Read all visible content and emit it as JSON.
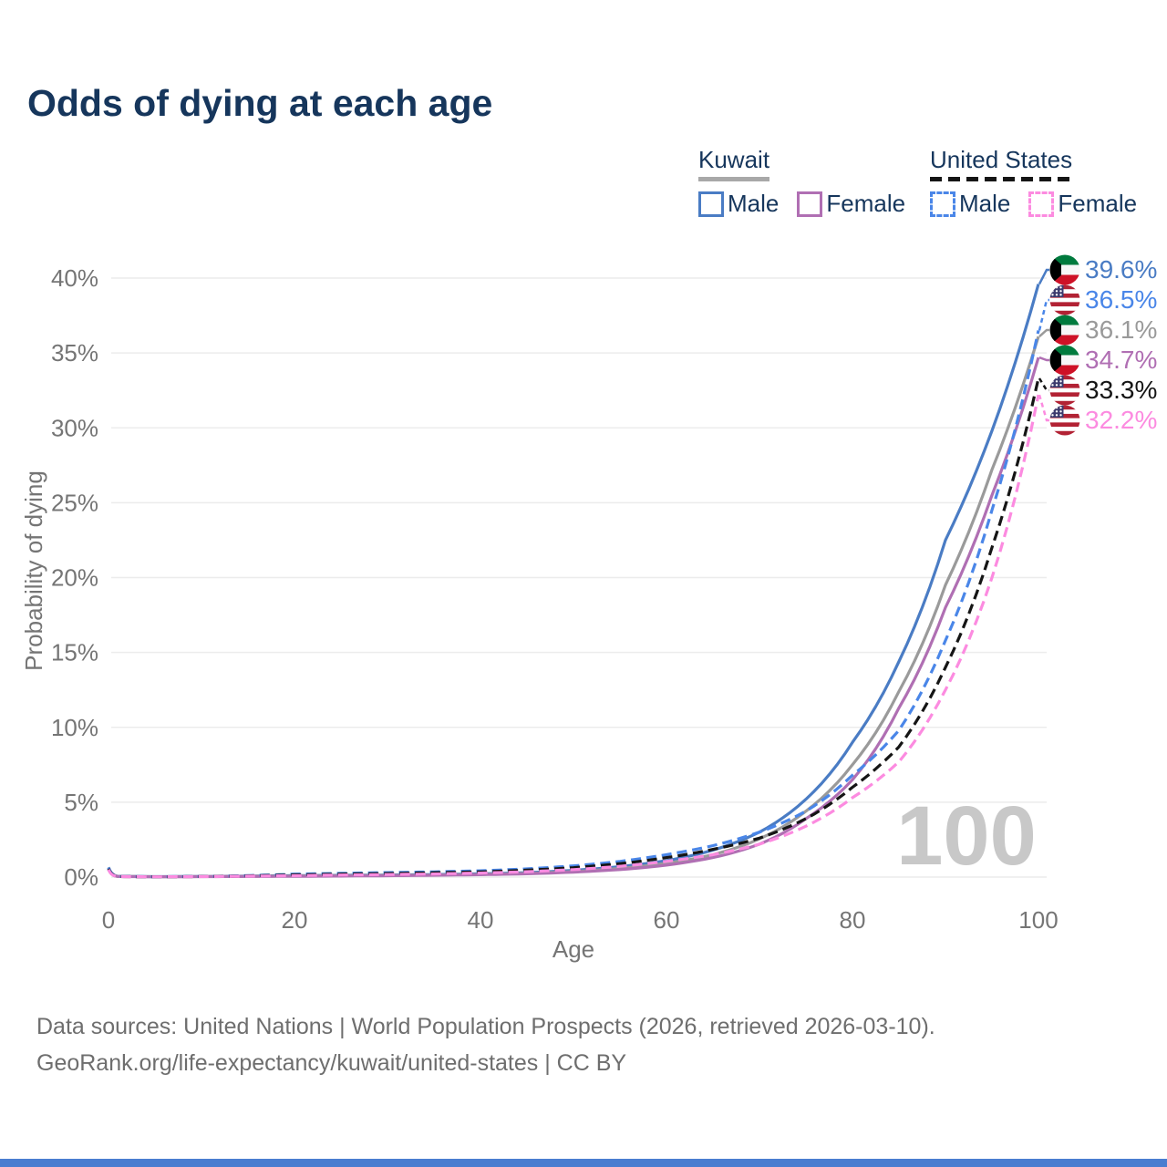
{
  "title": "Odds of dying at each age",
  "watermark": "100",
  "colors": {
    "title_text": "#16365c",
    "axis_text": "#757575",
    "gridline": "#ececec",
    "watermark": "#c8c8c8",
    "footer_text": "#6e6e6e",
    "accent_bar": "#4a7dd0",
    "kuwait_male": "#4a7cc4",
    "kuwait_all": "#9a9a9a",
    "kuwait_female": "#b06fb3",
    "us_male": "#4a86e8",
    "us_all": "#151515",
    "us_female": "#fc8be0"
  },
  "legend": {
    "groups": [
      {
        "id": "kuwait",
        "label": "Kuwait",
        "underline_style": "solid",
        "items": [
          {
            "id": "kuwait-male",
            "label": "Male",
            "color": "#4a7cc4",
            "dashed": false
          },
          {
            "id": "kuwait-female",
            "label": "Female",
            "color": "#b06fb3",
            "dashed": false
          }
        ]
      },
      {
        "id": "united-states",
        "label": "United States",
        "underline_style": "dashed",
        "items": [
          {
            "id": "us-male",
            "label": "Male",
            "color": "#4a86e8",
            "dashed": true
          },
          {
            "id": "us-female",
            "label": "Female",
            "color": "#fc8be0",
            "dashed": true
          }
        ]
      }
    ]
  },
  "footer": {
    "line1": "Data sources: United Nations | World Population Prospects (2026, retrieved 2026-03-10).",
    "line2": "GeoRank.org/life-expectancy/kuwait/united-states | CC BY"
  },
  "chart_data": {
    "type": "line",
    "title": "Odds of dying at each age",
    "xlabel": "Age",
    "ylabel": "Probability of dying",
    "xlim": [
      0,
      100
    ],
    "ylim_percent": [
      0,
      40
    ],
    "grid": "horizontal",
    "x_ticks": [
      0,
      20,
      40,
      60,
      80,
      100
    ],
    "y_tick_labels": [
      "0%",
      "5%",
      "10%",
      "15%",
      "20%",
      "25%",
      "30%",
      "35%",
      "40%"
    ],
    "y_tick_values": [
      0,
      5,
      10,
      15,
      20,
      25,
      30,
      35,
      40
    ],
    "legend_position": "top-right",
    "ages": [
      0,
      1,
      5,
      10,
      15,
      20,
      25,
      30,
      35,
      40,
      45,
      50,
      55,
      60,
      65,
      70,
      75,
      80,
      85,
      90,
      95,
      100
    ],
    "series": [
      {
        "id": "kuwait-male",
        "name": "Kuwait Male",
        "country": "Kuwait",
        "sex": "Male",
        "color": "#4a7cc4",
        "dashed": false,
        "flag": "kuwait",
        "end_label": "39.6%",
        "end_value": 39.6,
        "values": [
          0.65,
          0.05,
          0.03,
          0.04,
          0.07,
          0.1,
          0.12,
          0.14,
          0.17,
          0.22,
          0.3,
          0.45,
          0.7,
          1.1,
          1.8,
          3.0,
          5.2,
          9.0,
          14.4,
          22.5,
          29.8,
          39.6
        ]
      },
      {
        "id": "kuwait-all",
        "name": "Kuwait",
        "country": "Kuwait",
        "sex": "Both",
        "color": "#9a9a9a",
        "dashed": false,
        "flag": "kuwait",
        "end_label": "36.1%",
        "end_value": 36.1,
        "values": [
          0.55,
          0.045,
          0.025,
          0.035,
          0.055,
          0.08,
          0.1,
          0.12,
          0.14,
          0.18,
          0.25,
          0.38,
          0.58,
          0.92,
          1.5,
          2.55,
          4.4,
          7.5,
          12.4,
          19.5,
          27.2,
          36.1
        ]
      },
      {
        "id": "kuwait-female",
        "name": "Kuwait Female",
        "country": "Kuwait",
        "sex": "Female",
        "color": "#b06fb3",
        "dashed": false,
        "flag": "kuwait",
        "end_label": "34.7%",
        "end_value": 34.7,
        "values": [
          0.5,
          0.04,
          0.02,
          0.03,
          0.04,
          0.05,
          0.07,
          0.09,
          0.12,
          0.16,
          0.22,
          0.33,
          0.5,
          0.8,
          1.3,
          2.2,
          3.9,
          6.5,
          11.3,
          18.0,
          25.5,
          34.7
        ]
      },
      {
        "id": "us-male",
        "name": "United States Male",
        "country": "United States",
        "sex": "Male",
        "color": "#4a86e8",
        "dashed": true,
        "flag": "us",
        "end_label": "36.5%",
        "end_value": 36.5,
        "values": [
          0.6,
          0.04,
          0.025,
          0.04,
          0.1,
          0.2,
          0.25,
          0.3,
          0.35,
          0.42,
          0.55,
          0.75,
          1.05,
          1.5,
          2.1,
          3.0,
          4.4,
          6.8,
          9.8,
          15.8,
          24.5,
          36.5
        ]
      },
      {
        "id": "us-all",
        "name": "United States",
        "country": "United States",
        "sex": "Both",
        "color": "#151515",
        "dashed": true,
        "flag": "us",
        "end_label": "33.3%",
        "end_value": 33.3,
        "values": [
          0.55,
          0.035,
          0.02,
          0.035,
          0.08,
          0.15,
          0.2,
          0.24,
          0.29,
          0.35,
          0.46,
          0.63,
          0.9,
          1.3,
          1.85,
          2.6,
          3.9,
          6.0,
          8.7,
          14.0,
          22.0,
          33.3
        ]
      },
      {
        "id": "us-female",
        "name": "United States Female",
        "country": "United States",
        "sex": "Female",
        "color": "#fc8be0",
        "dashed": true,
        "flag": "us",
        "end_label": "32.2%",
        "end_value": 32.2,
        "values": [
          0.5,
          0.03,
          0.018,
          0.03,
          0.06,
          0.1,
          0.14,
          0.17,
          0.21,
          0.27,
          0.36,
          0.5,
          0.72,
          1.05,
          1.5,
          2.2,
          3.4,
          5.3,
          7.7,
          12.5,
          20.0,
          32.2
        ]
      }
    ]
  }
}
